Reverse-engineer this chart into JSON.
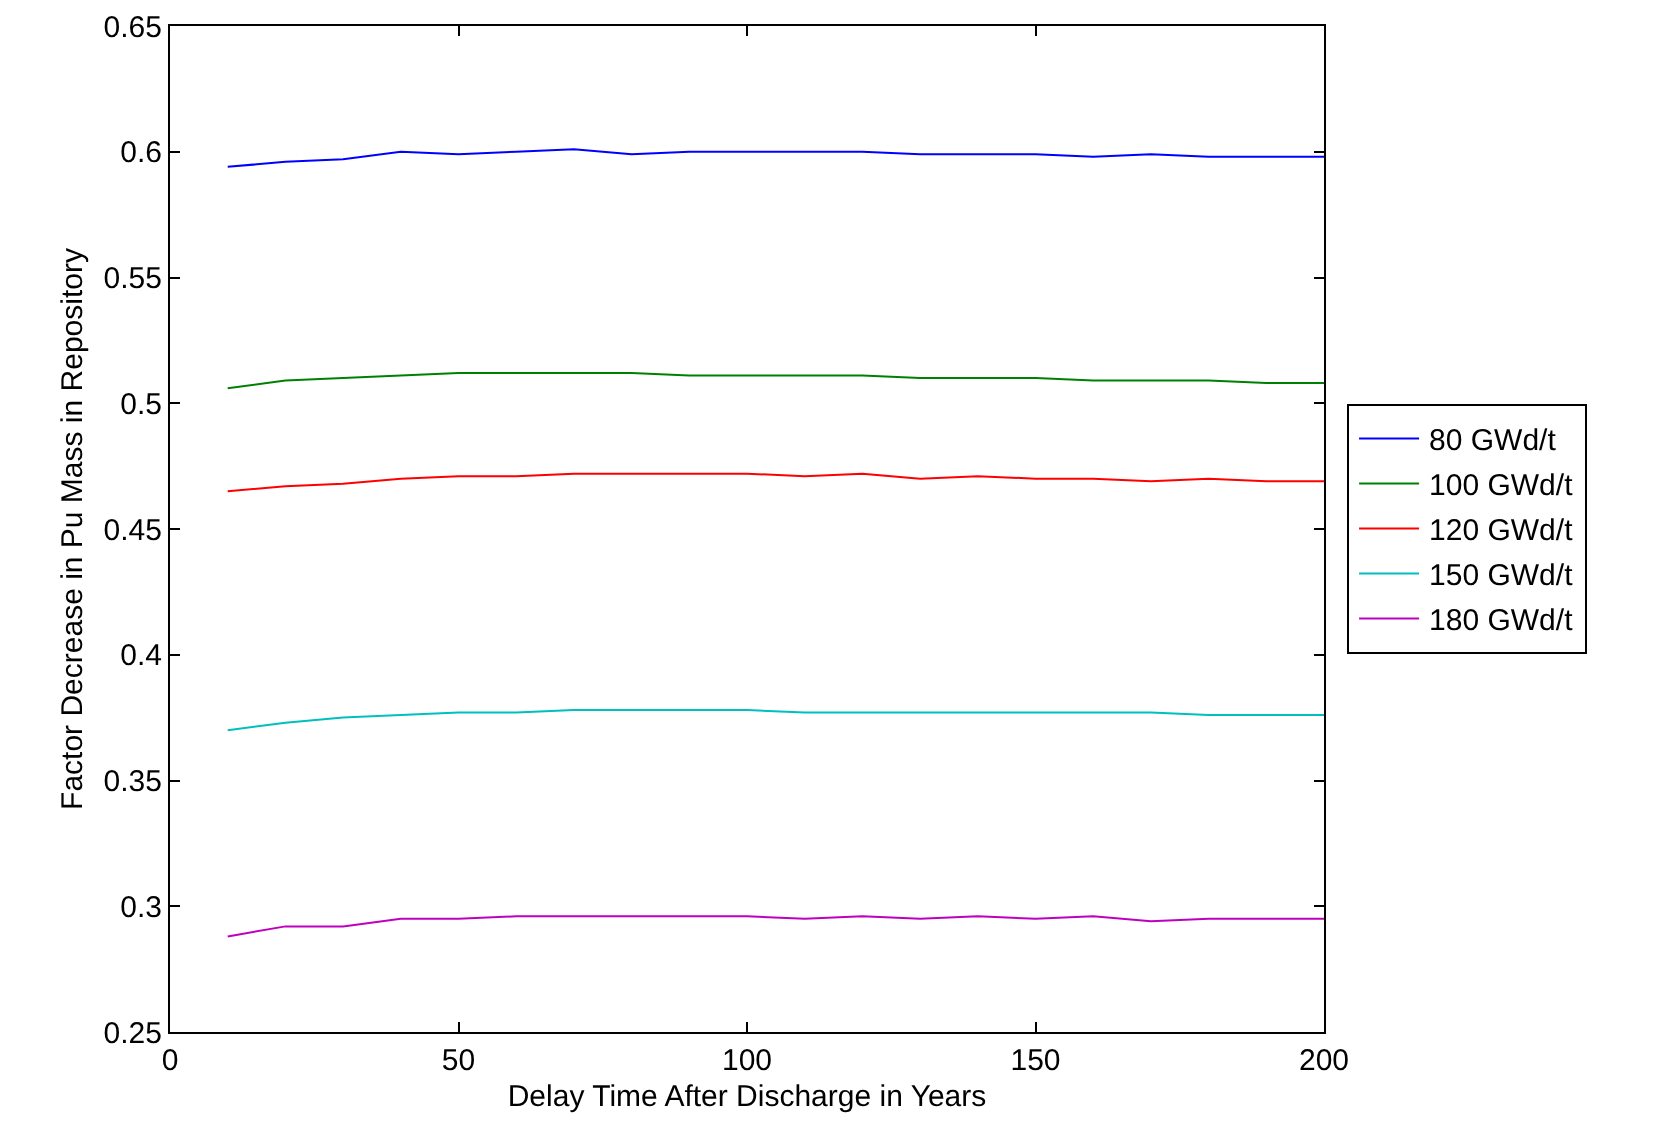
{
  "chart_data": {
    "type": "line",
    "xlabel": "Delay Time After Discharge in Years",
    "ylabel": "Factor Decrease in Pu Mass in Repository",
    "x": [
      10,
      20,
      30,
      40,
      50,
      60,
      70,
      80,
      90,
      100,
      110,
      120,
      130,
      140,
      150,
      160,
      170,
      180,
      190,
      200
    ],
    "series": [
      {
        "name": "80 GWd/t",
        "color": "#0000ff",
        "values": [
          0.594,
          0.596,
          0.597,
          0.6,
          0.599,
          0.6,
          0.601,
          0.599,
          0.6,
          0.6,
          0.6,
          0.6,
          0.599,
          0.599,
          0.599,
          0.598,
          0.599,
          0.598,
          0.598,
          0.598
        ]
      },
      {
        "name": "100 GWd/t",
        "color": "#008000",
        "values": [
          0.506,
          0.509,
          0.51,
          0.511,
          0.512,
          0.512,
          0.512,
          0.512,
          0.511,
          0.511,
          0.511,
          0.511,
          0.51,
          0.51,
          0.51,
          0.509,
          0.509,
          0.509,
          0.508,
          0.508
        ]
      },
      {
        "name": "120 GWd/t",
        "color": "#ff0000",
        "values": [
          0.465,
          0.467,
          0.468,
          0.47,
          0.471,
          0.471,
          0.472,
          0.472,
          0.472,
          0.472,
          0.471,
          0.472,
          0.47,
          0.471,
          0.47,
          0.47,
          0.469,
          0.47,
          0.469,
          0.469
        ]
      },
      {
        "name": "150 GWd/t",
        "color": "#00bfbf",
        "values": [
          0.37,
          0.373,
          0.375,
          0.376,
          0.377,
          0.377,
          0.378,
          0.378,
          0.378,
          0.378,
          0.377,
          0.377,
          0.377,
          0.377,
          0.377,
          0.377,
          0.377,
          0.376,
          0.376,
          0.376
        ]
      },
      {
        "name": "180 GWd/t",
        "color": "#bf00bf",
        "values": [
          0.288,
          0.292,
          0.292,
          0.295,
          0.295,
          0.296,
          0.296,
          0.296,
          0.296,
          0.296,
          0.295,
          0.296,
          0.295,
          0.296,
          0.295,
          0.296,
          0.294,
          0.295,
          0.295,
          0.295
        ]
      }
    ],
    "xlim": [
      0,
      200
    ],
    "xticks": [
      0,
      50,
      100,
      150,
      200
    ],
    "ylim": [
      0.25,
      0.65
    ],
    "yticks": [
      0.25,
      0.3,
      0.35,
      0.4,
      0.45,
      0.5,
      0.55,
      0.6,
      0.65
    ],
    "grid": false,
    "legend": "right",
    "marker": "none",
    "line_style": "solid"
  }
}
